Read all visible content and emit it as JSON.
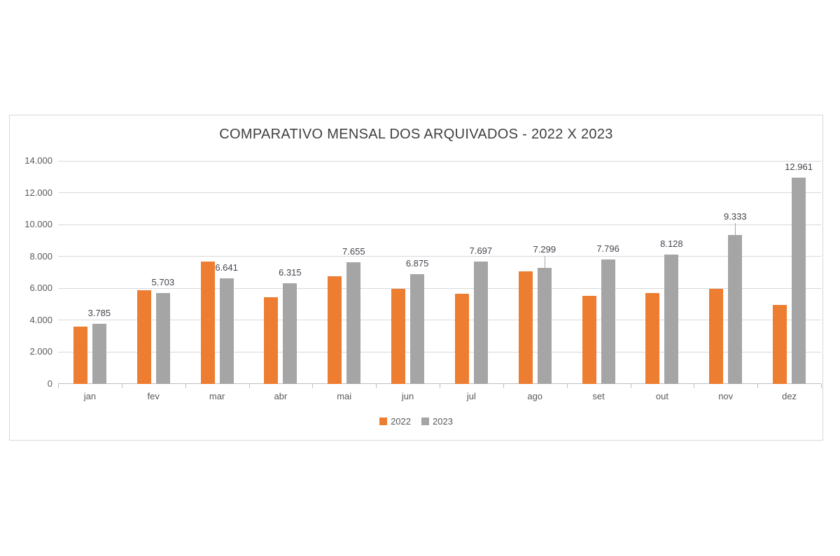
{
  "chart_data": {
    "type": "bar",
    "title": "COMPARATIVO MENSAL DOS ARQUIVADOS - 2022 X 2023",
    "categories": [
      "jan",
      "fev",
      "mar",
      "abr",
      "mai",
      "jun",
      "jul",
      "ago",
      "set",
      "out",
      "nov",
      "dez"
    ],
    "series": [
      {
        "name": "2022",
        "color": "#ED7D31",
        "values": [
          3600,
          5900,
          7700,
          5450,
          6750,
          5950,
          5650,
          7050,
          5550,
          5700,
          5950,
          4950
        ],
        "labels_visible": false
      },
      {
        "name": "2023",
        "color": "#A5A5A5",
        "values": [
          3785,
          5703,
          6641,
          6315,
          7655,
          6875,
          7697,
          7299,
          7796,
          8128,
          9333,
          12961
        ],
        "labels_visible": true,
        "labels": [
          "3.785",
          "5.703",
          "6.641",
          "6.315",
          "7.655",
          "6.875",
          "7.697",
          "7.299",
          "7.796",
          "8.128",
          "9.333",
          "12.961"
        ],
        "label_leader": [
          false,
          false,
          false,
          false,
          false,
          false,
          false,
          true,
          false,
          false,
          true,
          false
        ]
      }
    ],
    "ylim": [
      0,
      14000
    ],
    "ytick_step": 2000,
    "ytick_labels": [
      "0",
      "2.000",
      "4.000",
      "6.000",
      "8.000",
      "10.000",
      "12.000",
      "14.000"
    ],
    "grid": true,
    "legend_position": "bottom",
    "colors": {
      "gridline": "#D9D9D9",
      "axis_line": "#BFBFBF",
      "title_text": "#404040",
      "axis_text": "#595959",
      "data_label_text": "#44444E"
    }
  }
}
